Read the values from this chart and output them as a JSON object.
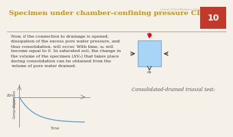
{
  "bg_color": "#f5f0e8",
  "title": "Specimen under chamber-confining pressure CD Test",
  "title_color": "#c8960c",
  "title_fontsize": 7.5,
  "slide_number": "10",
  "slide_number_bg": "#c0392b",
  "body_text": "Now, if the connection to drainage is opened,\ndissipation of the excess pore water pressure, and\nthus consolidation, will occur. With time, uₑ will\nbecome equal to 0. In saturated soil, the change in\nthe volume of the specimen (ΔVₑ) that takes place\nduring consolidation can be obtained from the\nvolume of pore water drained.",
  "body_fontsize": 4.5,
  "graph_xlabel": "Time",
  "graph_ylabel_top": "Expansion",
  "graph_ylabel_bottom": "Compression",
  "graph_delta_label": "ΔVc",
  "graph_color": "#5ba3c9",
  "consolidation_text": "Consolidated-drained triaxial test:",
  "consolidation_fontsize": 5.0,
  "specimen_box_color": "#a8d4f5",
  "watermark_text": "Lecture 10 Soil Mechanics II Triaxial Part 1"
}
